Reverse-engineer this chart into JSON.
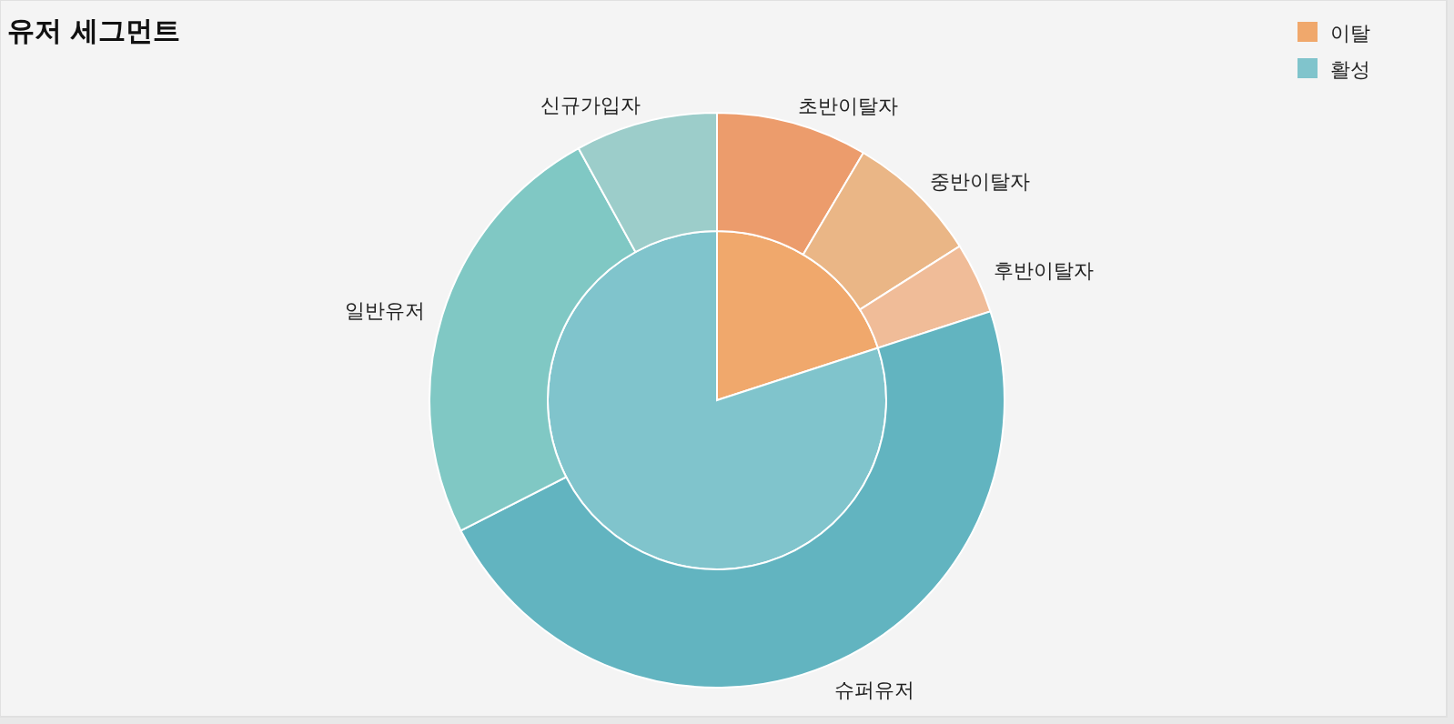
{
  "chart_data": [
    {
      "type": "pie",
      "title": "유저 세그먼트",
      "categories": [
        "이탈",
        "활성"
      ],
      "values": [
        20,
        80
      ],
      "colors": [
        "#f0a86c",
        "#80c4cc"
      ],
      "legend": "top right"
    },
    {
      "type": "donut",
      "categories": [
        "초반이탈자",
        "중반이탈자",
        "후반이탈자",
        "슈퍼유저",
        "일반유저",
        "신규가입자"
      ],
      "values": [
        8.5,
        7.5,
        4,
        47.5,
        24.5,
        8
      ],
      "colors": [
        "#ec9c6c",
        "#eab686",
        "#f0bc98",
        "#62b4c0",
        "#80c8c4",
        "#9ccdca"
      ]
    }
  ]
}
